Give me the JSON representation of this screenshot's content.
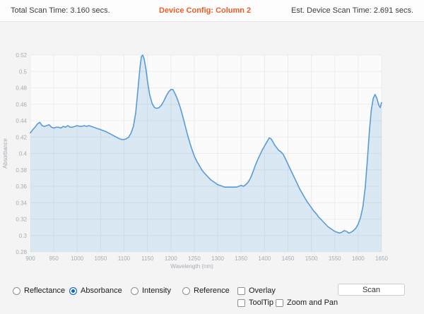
{
  "header": {
    "total_scan_time": "Total Scan Time: 3.160 secs.",
    "device_config": "Device Config: Column 2",
    "est_device_scan_time": "Est. Device Scan Time: 2.691 secs."
  },
  "colors": {
    "accent_orange": "#ee5b24",
    "line_blue": "#5b9bd5",
    "fill_blue": "rgba(100,162,220,0.22)",
    "gridline": "#ececec",
    "plot_bg": "#fbfbfb",
    "axis_text": "#a6abb5",
    "radio_selected_blue": "#0d63c6"
  },
  "chart_data": {
    "type": "area",
    "title": "",
    "xlabel": "Wavelength (nm)",
    "ylabel": "Absorbance",
    "xlim": [
      900,
      1650
    ],
    "ylim": [
      0.28,
      0.52
    ],
    "x_ticks": [
      900,
      950,
      1000,
      1050,
      1100,
      1150,
      1200,
      1250,
      1300,
      1350,
      1400,
      1450,
      1500,
      1550,
      1600,
      1650
    ],
    "y_ticks": [
      0.28,
      0.3,
      0.32,
      0.34,
      0.36,
      0.38,
      0.4,
      0.42,
      0.44,
      0.46,
      0.48,
      0.5,
      0.52
    ],
    "grid": true,
    "legend": "none",
    "x": [
      900,
      905,
      910,
      915,
      920,
      925,
      930,
      935,
      940,
      945,
      950,
      955,
      960,
      965,
      970,
      975,
      980,
      985,
      990,
      995,
      1000,
      1005,
      1010,
      1015,
      1020,
      1025,
      1030,
      1035,
      1040,
      1050,
      1060,
      1070,
      1080,
      1090,
      1095,
      1100,
      1105,
      1110,
      1115,
      1120,
      1125,
      1130,
      1134,
      1137,
      1140,
      1143,
      1147,
      1150,
      1155,
      1160,
      1165,
      1170,
      1175,
      1180,
      1185,
      1190,
      1195,
      1200,
      1204,
      1208,
      1212,
      1216,
      1220,
      1225,
      1230,
      1235,
      1240,
      1245,
      1250,
      1255,
      1260,
      1265,
      1270,
      1275,
      1280,
      1285,
      1290,
      1295,
      1300,
      1305,
      1310,
      1315,
      1320,
      1330,
      1340,
      1345,
      1350,
      1355,
      1360,
      1365,
      1370,
      1375,
      1380,
      1385,
      1390,
      1395,
      1400,
      1405,
      1410,
      1414,
      1418,
      1422,
      1426,
      1430,
      1435,
      1440,
      1445,
      1450,
      1455,
      1460,
      1465,
      1470,
      1475,
      1480,
      1485,
      1490,
      1495,
      1500,
      1505,
      1510,
      1515,
      1520,
      1525,
      1530,
      1535,
      1540,
      1545,
      1550,
      1555,
      1560,
      1565,
      1570,
      1575,
      1580,
      1585,
      1590,
      1595,
      1600,
      1605,
      1610,
      1615,
      1620,
      1624,
      1628,
      1632,
      1636,
      1640,
      1644,
      1647,
      1650
    ],
    "y": [
      0.425,
      0.429,
      0.432,
      0.436,
      0.438,
      0.434,
      0.433,
      0.434,
      0.435,
      0.432,
      0.431,
      0.432,
      0.432,
      0.431,
      0.433,
      0.432,
      0.434,
      0.432,
      0.432,
      0.433,
      0.434,
      0.433,
      0.433,
      0.434,
      0.433,
      0.434,
      0.433,
      0.432,
      0.431,
      0.429,
      0.427,
      0.424,
      0.421,
      0.418,
      0.417,
      0.417,
      0.418,
      0.42,
      0.425,
      0.433,
      0.45,
      0.48,
      0.505,
      0.518,
      0.52,
      0.515,
      0.502,
      0.488,
      0.471,
      0.461,
      0.456,
      0.455,
      0.456,
      0.459,
      0.464,
      0.47,
      0.475,
      0.478,
      0.478,
      0.474,
      0.469,
      0.463,
      0.456,
      0.446,
      0.435,
      0.424,
      0.414,
      0.405,
      0.397,
      0.391,
      0.386,
      0.381,
      0.377,
      0.374,
      0.371,
      0.368,
      0.366,
      0.364,
      0.362,
      0.361,
      0.36,
      0.359,
      0.359,
      0.359,
      0.359,
      0.36,
      0.361,
      0.36,
      0.362,
      0.365,
      0.37,
      0.377,
      0.385,
      0.392,
      0.398,
      0.404,
      0.409,
      0.414,
      0.419,
      0.418,
      0.414,
      0.41,
      0.407,
      0.404,
      0.402,
      0.399,
      0.393,
      0.387,
      0.381,
      0.375,
      0.369,
      0.363,
      0.357,
      0.352,
      0.347,
      0.342,
      0.338,
      0.334,
      0.33,
      0.327,
      0.323,
      0.32,
      0.317,
      0.314,
      0.311,
      0.309,
      0.307,
      0.305,
      0.304,
      0.303,
      0.304,
      0.306,
      0.305,
      0.303,
      0.304,
      0.306,
      0.309,
      0.314,
      0.322,
      0.335,
      0.358,
      0.395,
      0.428,
      0.453,
      0.467,
      0.472,
      0.467,
      0.459,
      0.456,
      0.462
    ]
  },
  "controls": {
    "radios": [
      {
        "label": "Reflectance",
        "selected": false
      },
      {
        "label": "Absorbance",
        "selected": true
      },
      {
        "label": "Intensity",
        "selected": false
      },
      {
        "label": "Reference",
        "selected": false
      }
    ],
    "checkboxes": [
      {
        "label": "Overlay",
        "checked": false
      },
      {
        "label": "ToolTip",
        "checked": false
      },
      {
        "label": "Zoom and Pan",
        "checked": false
      }
    ],
    "scan_button": "Scan"
  }
}
